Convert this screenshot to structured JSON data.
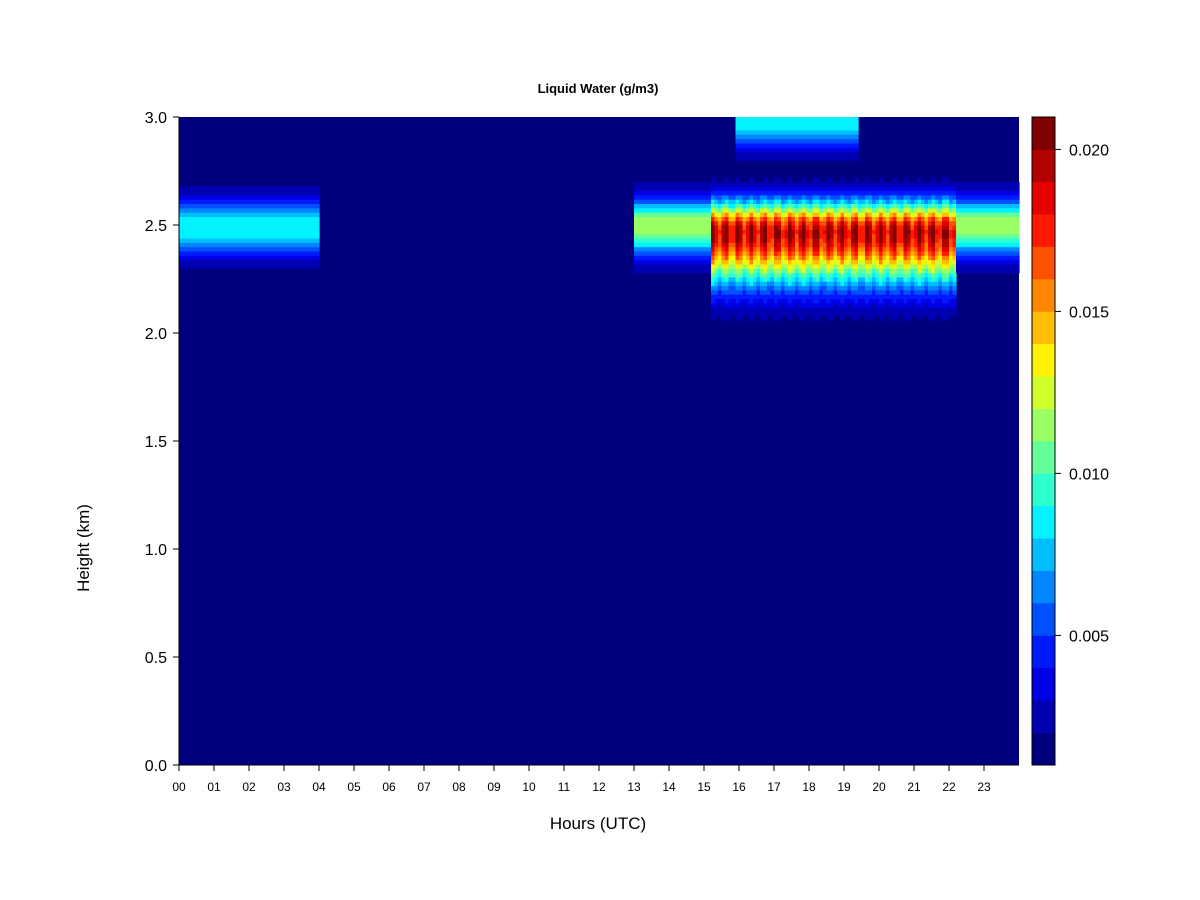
{
  "chart_data": {
    "type": "heatmap",
    "title": "Liquid Water (g/m3)",
    "xlabel": "Hours (UTC)",
    "ylabel": "Height (km)",
    "xlim": [
      0,
      24
    ],
    "ylim": [
      0.0,
      3.0
    ],
    "x_ticks": [
      "00",
      "01",
      "02",
      "03",
      "04",
      "05",
      "06",
      "07",
      "08",
      "09",
      "10",
      "11",
      "12",
      "13",
      "14",
      "15",
      "16",
      "17",
      "18",
      "19",
      "20",
      "21",
      "22",
      "23"
    ],
    "y_ticks": [
      "0.0",
      "0.5",
      "1.0",
      "1.5",
      "2.0",
      "2.5",
      "3.0"
    ],
    "colorbar": {
      "range": [
        0.001,
        0.021
      ],
      "ticks": [
        "0.005",
        "0.010",
        "0.015",
        "0.020"
      ],
      "colors": [
        "#00007F",
        "#0000B2",
        "#0000E5",
        "#0019FF",
        "#0050FF",
        "#0086FF",
        "#00BDFF",
        "#00F3FF",
        "#2DFFD0",
        "#64FF99",
        "#9AFF63",
        "#D1FF2C",
        "#FFF300",
        "#FFBD00",
        "#FF8600",
        "#FF5000",
        "#FF1900",
        "#E50000",
        "#B20000",
        "#7F0000"
      ]
    },
    "cloud_layers": [
      {
        "x_range": [
          0.0,
          4.0
        ],
        "base_km": 2.25,
        "top_km": 2.72,
        "peak_km": 2.5,
        "peak_value": 0.009
      },
      {
        "x_range": [
          13.0,
          15.2
        ],
        "base_km": 2.25,
        "top_km": 2.72,
        "peak_km": 2.5,
        "peak_value": 0.012
      },
      {
        "x_range": [
          15.2,
          22.2
        ],
        "base_km": 2.05,
        "top_km": 2.72,
        "peak_km": 2.47,
        "peak_value": 0.021
      },
      {
        "x_range": [
          22.2,
          24.0
        ],
        "base_km": 2.25,
        "top_km": 2.72,
        "peak_km": 2.5,
        "peak_value": 0.012
      },
      {
        "x_range": [
          15.9,
          19.4
        ],
        "base_km": 2.75,
        "top_km": 3.0,
        "peak_km": 3.0,
        "peak_value": 0.009
      }
    ]
  }
}
